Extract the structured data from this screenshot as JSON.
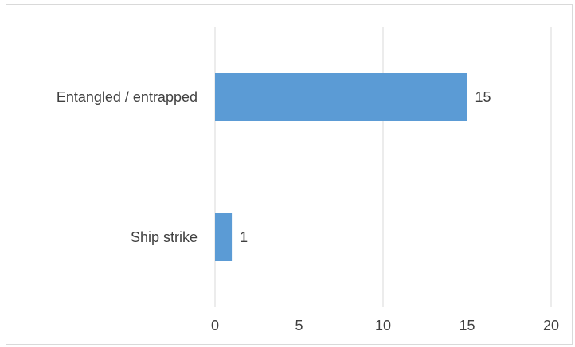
{
  "chart_data": {
    "type": "bar",
    "orientation": "horizontal",
    "categories": [
      "Entangled / entrapped",
      "Ship strike"
    ],
    "values": [
      15,
      1
    ],
    "data_labels": [
      "15",
      "1"
    ],
    "title": "",
    "xlabel": "",
    "ylabel": "",
    "xlim": [
      0,
      20
    ],
    "ticks": [
      0,
      5,
      10,
      15,
      20
    ],
    "tick_labels": [
      "0",
      "5",
      "10",
      "15",
      "20"
    ],
    "grid": "vertical",
    "legend": "none",
    "bar_color": "#5b9bd5",
    "grid_color": "#d9d9d9",
    "text_color": "#404040"
  }
}
